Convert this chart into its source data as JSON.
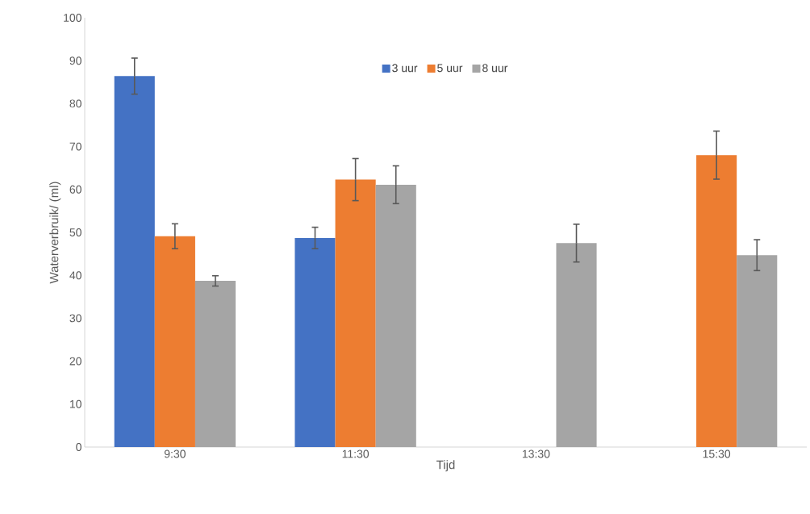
{
  "chart_data": {
    "type": "bar",
    "xlabel": "Tijd",
    "ylabel": "Waterverbruik/ (ml)",
    "categories": [
      "9:30",
      "11:30",
      "13:30",
      "15:30"
    ],
    "series": [
      {
        "name": "3 uur",
        "color": "#4472c4",
        "values": [
          86.4,
          48.7,
          null,
          null
        ],
        "errors": [
          4.2,
          2.5,
          null,
          null
        ]
      },
      {
        "name": "5 uur",
        "color": "#ed7d31",
        "values": [
          49.1,
          62.3,
          null,
          68.0
        ],
        "errors": [
          2.9,
          4.9,
          null,
          5.6
        ]
      },
      {
        "name": "8 uur",
        "color": "#a5a5a5",
        "values": [
          38.7,
          61.1,
          47.5,
          44.7
        ],
        "errors": [
          1.2,
          4.4,
          4.4,
          3.6
        ]
      }
    ],
    "ylim": [
      0,
      100
    ],
    "yticks": [
      0,
      10,
      20,
      30,
      40,
      50,
      60,
      70,
      80,
      90,
      100
    ],
    "grid": false,
    "legend": "top"
  }
}
